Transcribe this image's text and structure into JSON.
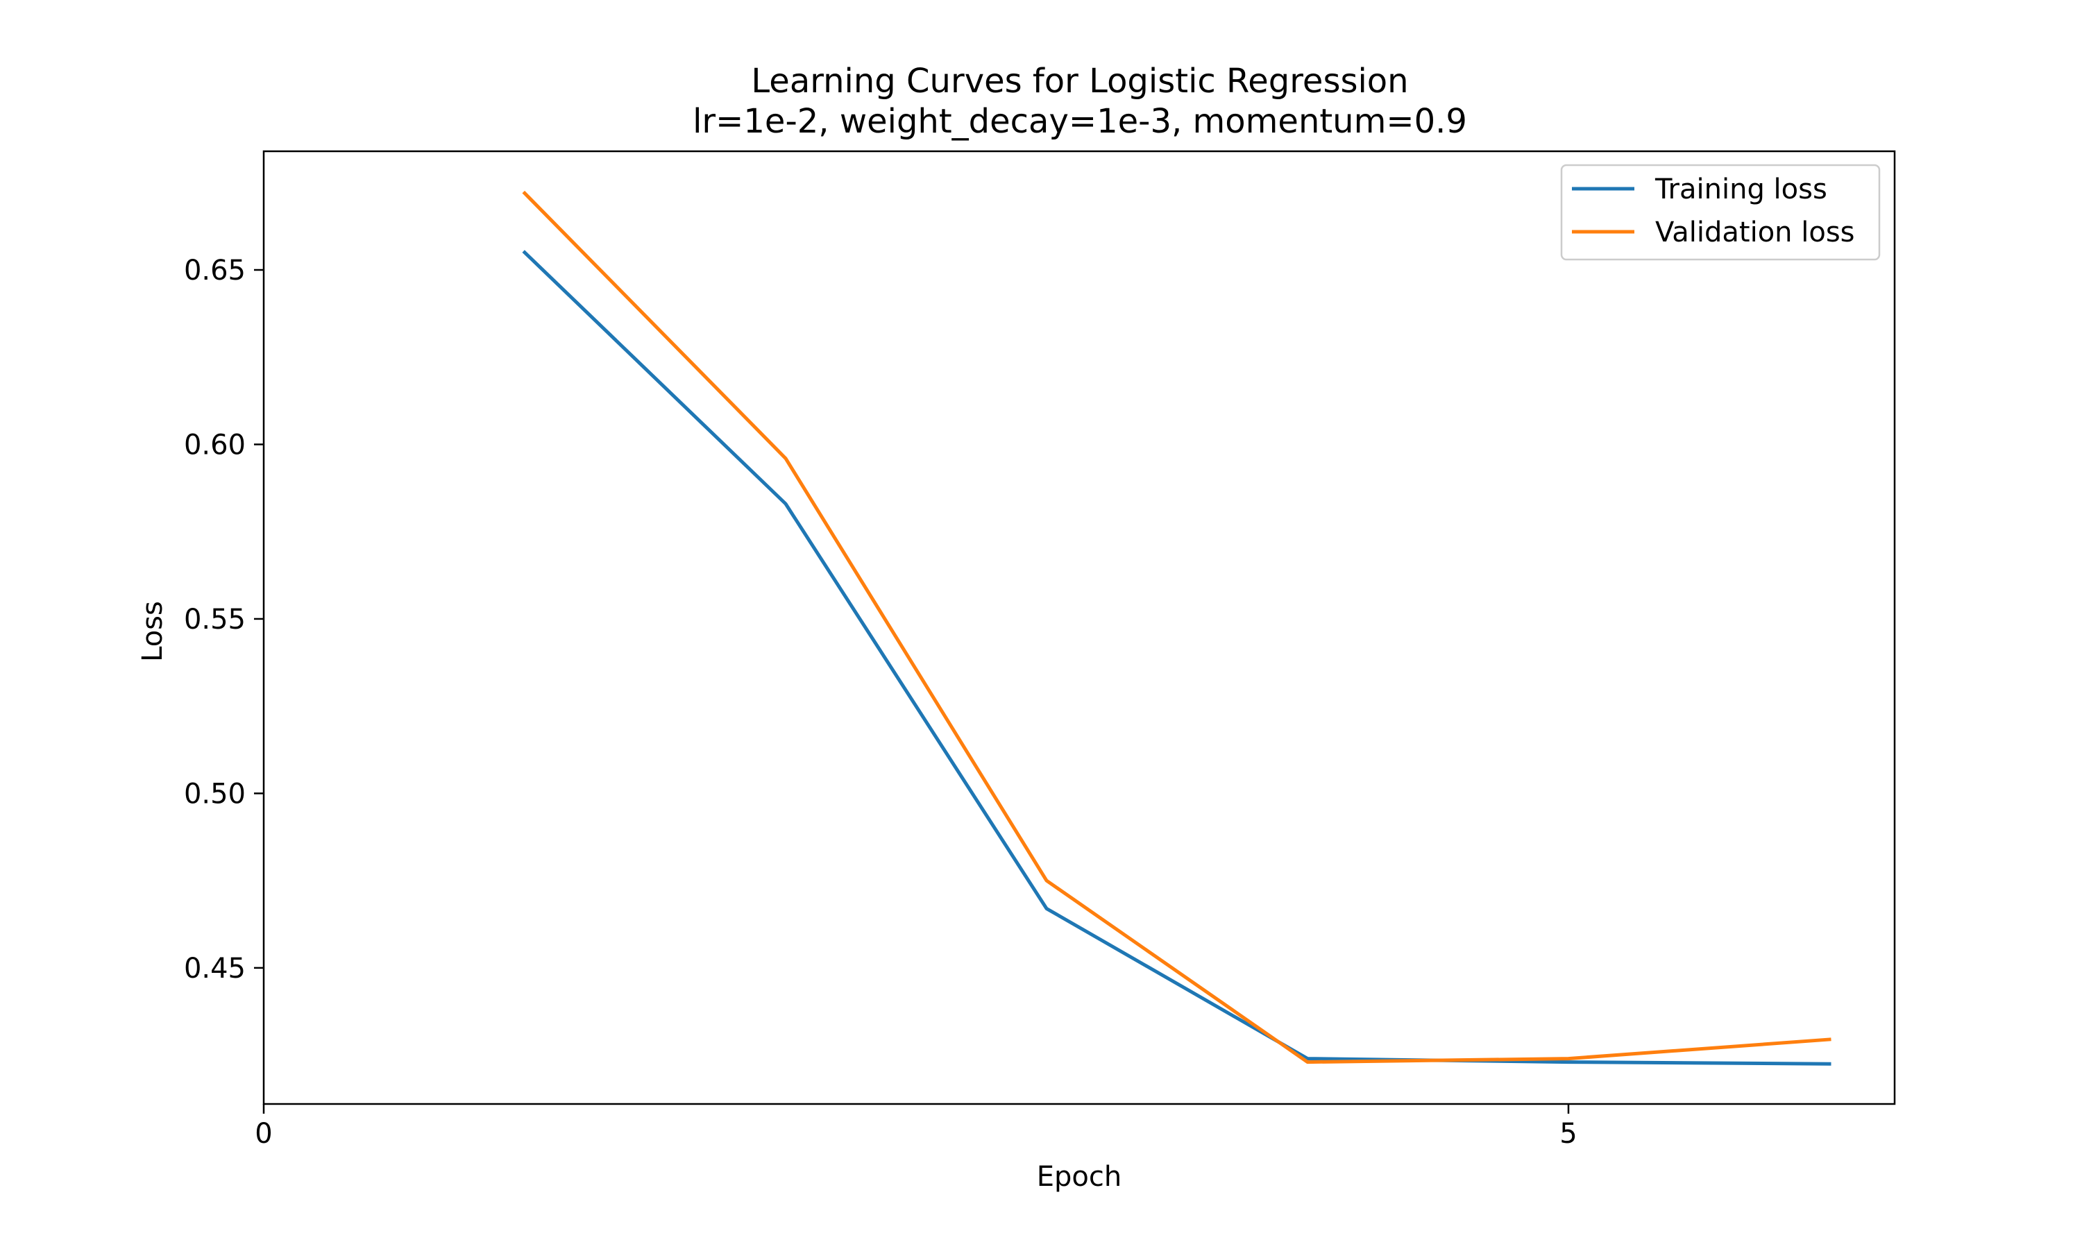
{
  "chart_data": {
    "type": "line",
    "title": "Learning Curves for Logistic Regression",
    "subtitle": "lr=1e-2, weight_decay=1e-3, momentum=0.9",
    "xlabel": "Epoch",
    "ylabel": "Loss",
    "xlim": [
      0,
      6.25
    ],
    "ylim": [
      0.411,
      0.684
    ],
    "x_ticks": [
      0,
      5
    ],
    "y_ticks": [
      0.45,
      0.5,
      0.55,
      0.6,
      0.65
    ],
    "y_tick_labels": [
      "0.45",
      "0.50",
      "0.55",
      "0.60",
      "0.65"
    ],
    "x": [
      1,
      2,
      3,
      4,
      5,
      6
    ],
    "series": [
      {
        "name": "Training loss",
        "color": "#1f77b4",
        "values": [
          0.655,
          0.583,
          0.467,
          0.424,
          0.423,
          0.4225
        ]
      },
      {
        "name": "Validation loss",
        "color": "#ff7f0e",
        "values": [
          0.672,
          0.596,
          0.475,
          0.423,
          0.424,
          0.4295
        ]
      }
    ],
    "grid": false,
    "legend_position": "top-right"
  }
}
